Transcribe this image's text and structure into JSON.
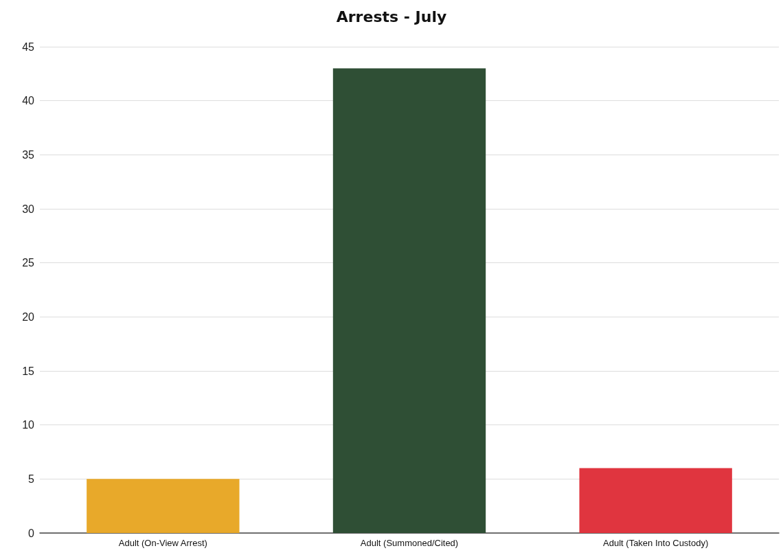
{
  "chart_data": {
    "type": "bar",
    "title": "Arrests - July",
    "categories": [
      "Adult (On-View Arrest)",
      "Adult (Summoned/Cited)",
      "Adult (Taken Into Custody)"
    ],
    "values": [
      5,
      43,
      6
    ],
    "colors": [
      "#e8a92a",
      "#2f4f35",
      "#e0353f"
    ],
    "ylim": [
      0,
      45
    ],
    "yticks": [
      0,
      5,
      10,
      15,
      20,
      25,
      30,
      35,
      40,
      45
    ],
    "grid": "y"
  }
}
